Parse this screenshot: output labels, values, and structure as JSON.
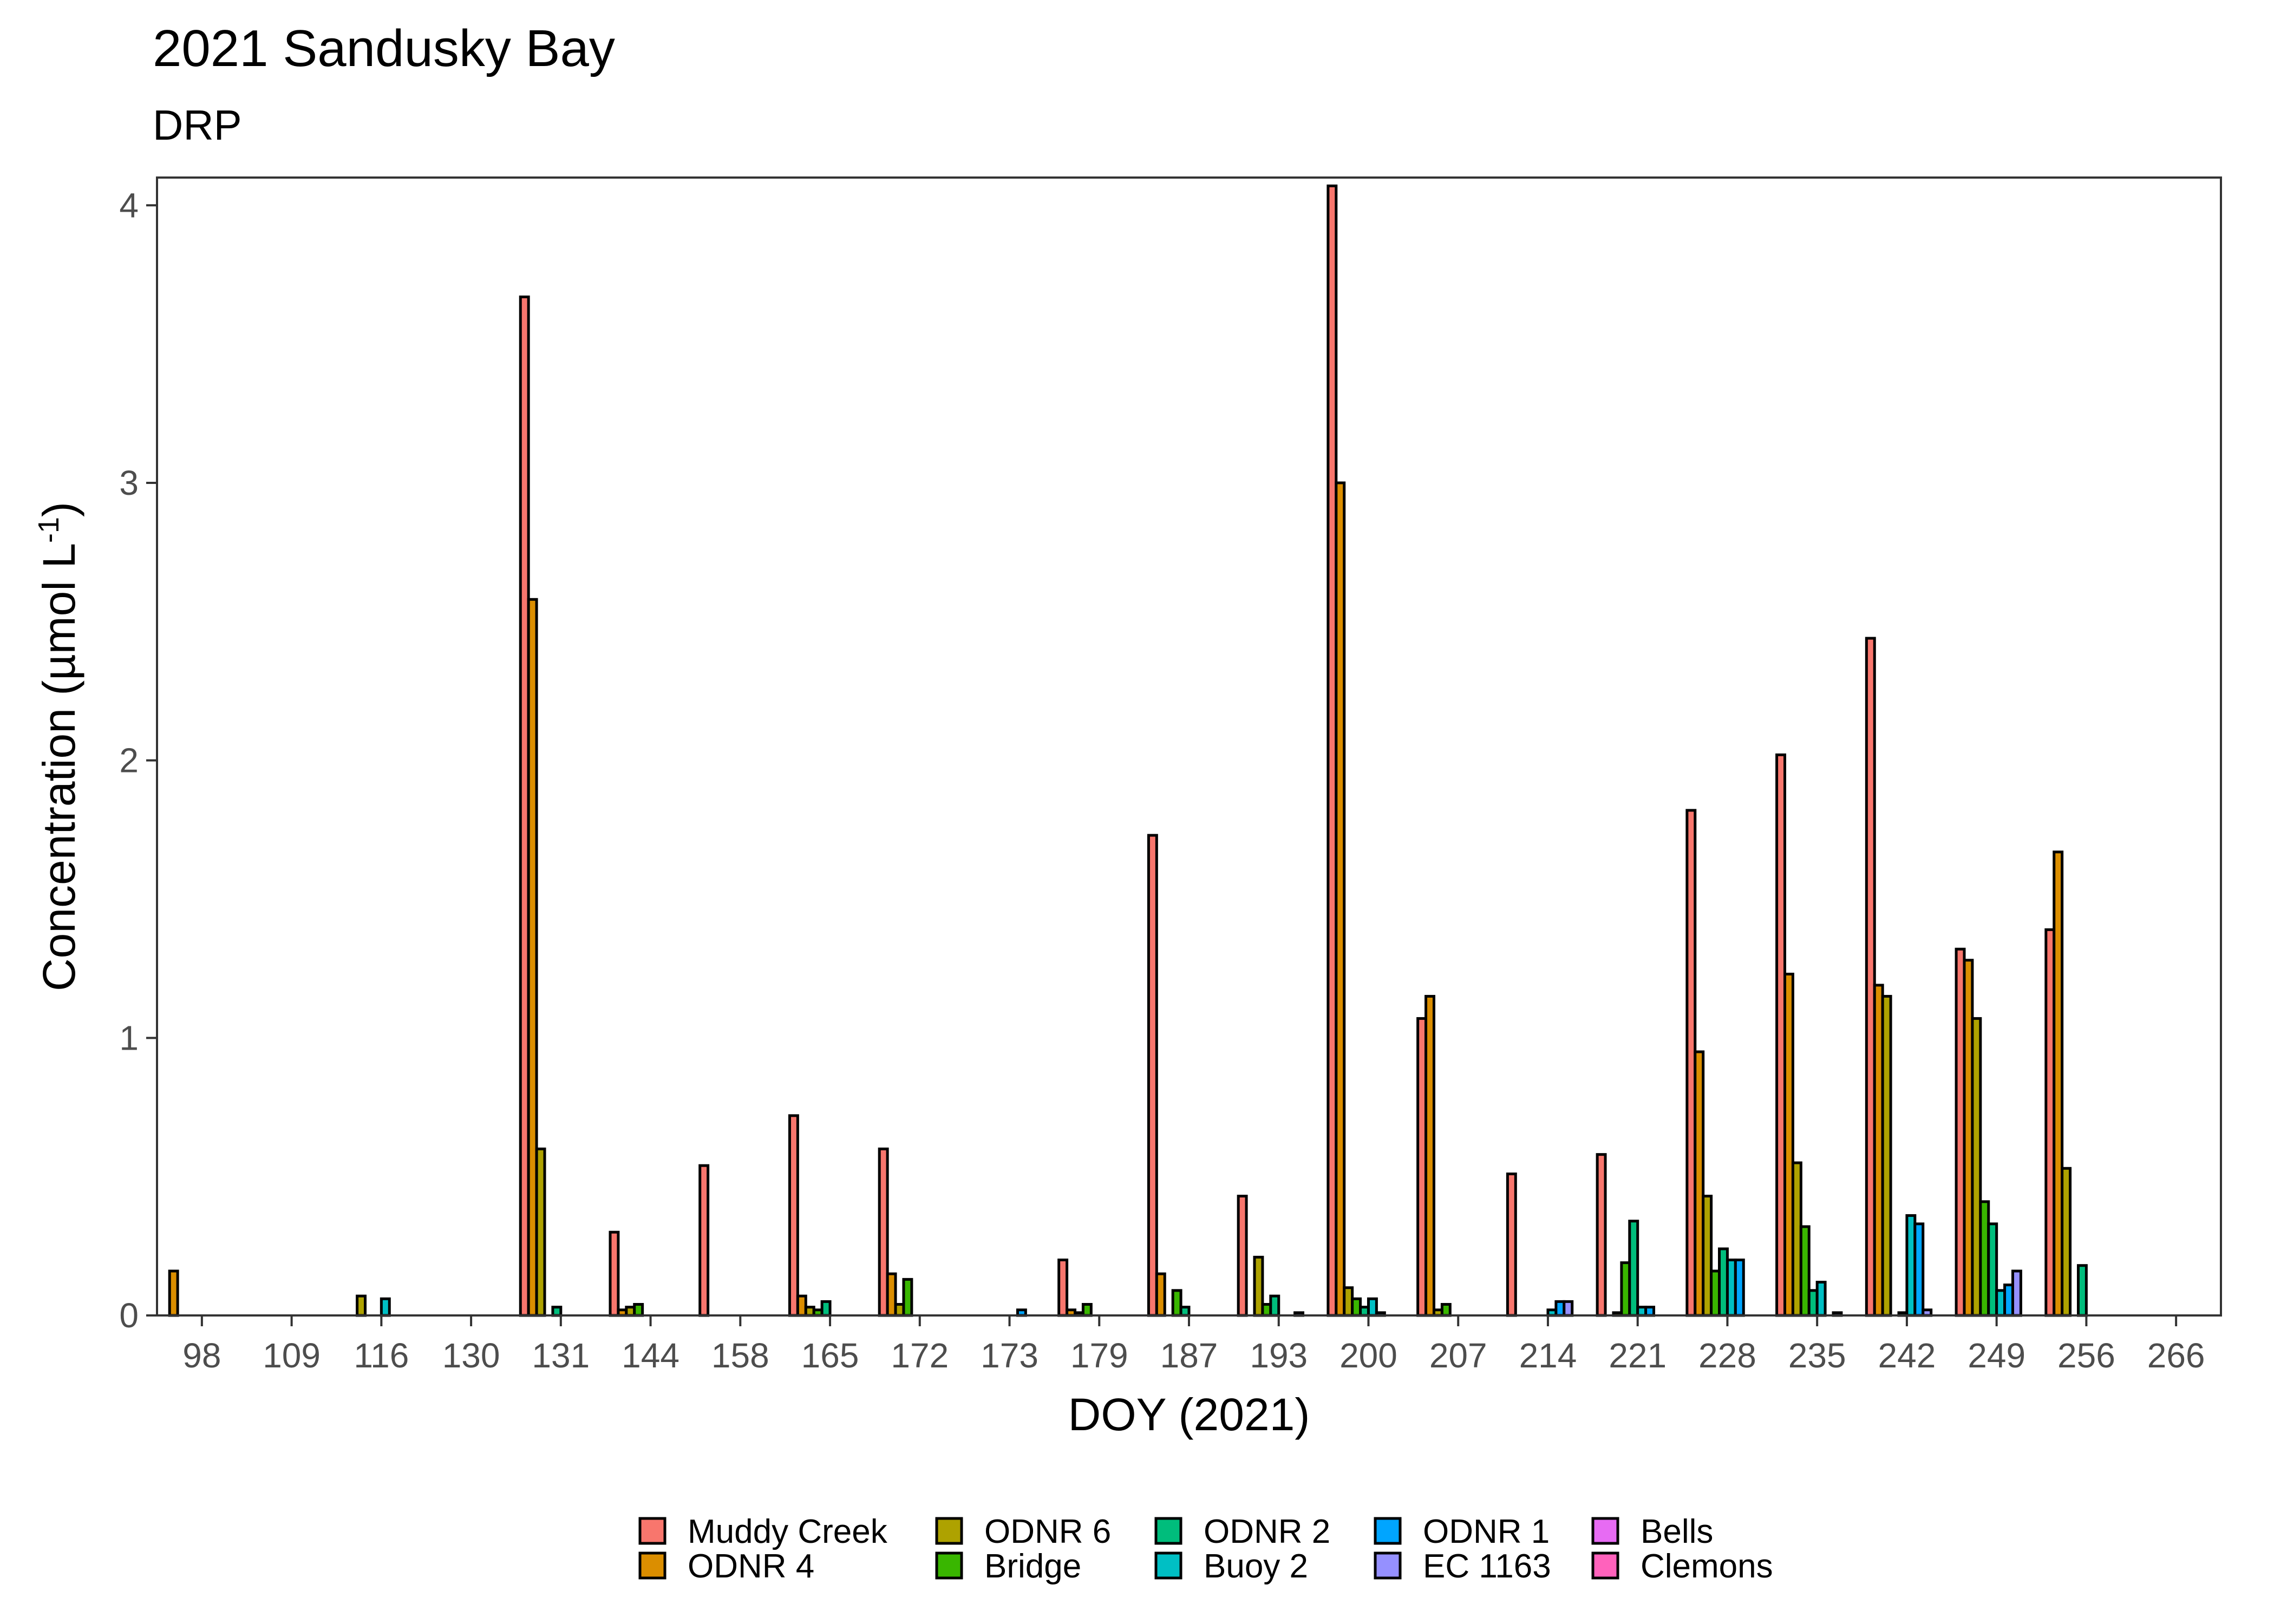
{
  "chart_data": {
    "type": "bar",
    "title": "2021 Sandusky Bay",
    "subtitle": "DRP",
    "xlabel": "DOY (2021)",
    "ylabel_main": "Concentration (µmol L",
    "ylabel_sup": "-1",
    "ylabel_close": ")",
    "ylim": [
      0,
      4.1
    ],
    "yticks": [
      0,
      1,
      2,
      3,
      4
    ],
    "grid": false,
    "legend_position": "bottom",
    "categories": [
      "98",
      "109",
      "116",
      "130",
      "131",
      "144",
      "158",
      "165",
      "172",
      "173",
      "179",
      "187",
      "193",
      "200",
      "207",
      "214",
      "221",
      "228",
      "235",
      "242",
      "249",
      "256",
      "266"
    ],
    "series": [
      {
        "name": "Muddy Creek",
        "color": "#F8766D",
        "values": [
          null,
          null,
          null,
          null,
          3.67,
          0.3,
          0.54,
          0.72,
          0.6,
          null,
          0.2,
          1.73,
          0.43,
          4.07,
          1.07,
          0.51,
          0.58,
          1.82,
          2.02,
          2.44,
          1.32,
          1.39,
          null
        ]
      },
      {
        "name": "ODNR 4",
        "color": "#DB8E00",
        "values": [
          0.16,
          null,
          null,
          null,
          2.58,
          0.02,
          null,
          0.07,
          0.15,
          null,
          0.02,
          0.15,
          null,
          3.0,
          1.15,
          null,
          null,
          0.95,
          1.23,
          1.19,
          1.28,
          1.67,
          null
        ]
      },
      {
        "name": "ODNR 6",
        "color": "#AEA200",
        "values": [
          null,
          null,
          0.07,
          null,
          0.6,
          0.03,
          null,
          0.03,
          0.04,
          null,
          0.01,
          null,
          0.21,
          0.1,
          0.02,
          null,
          0.01,
          0.43,
          0.55,
          1.15,
          1.07,
          0.53,
          null
        ]
      },
      {
        "name": "Bridge",
        "color": "#39B600",
        "values": [
          null,
          null,
          null,
          null,
          null,
          0.04,
          null,
          0.02,
          0.13,
          null,
          0.04,
          0.09,
          0.04,
          0.06,
          0.04,
          null,
          0.19,
          0.16,
          0.32,
          null,
          0.41,
          null,
          null
        ]
      },
      {
        "name": "ODNR 2",
        "color": "#00BD7C",
        "values": [
          null,
          null,
          null,
          null,
          0.03,
          null,
          null,
          0.05,
          null,
          null,
          null,
          0.03,
          0.07,
          0.03,
          null,
          null,
          0.34,
          0.24,
          0.09,
          0.01,
          0.33,
          0.18,
          null
        ]
      },
      {
        "name": "Buoy 2",
        "color": "#00BFC4",
        "values": [
          null,
          null,
          0.06,
          null,
          null,
          null,
          null,
          null,
          null,
          null,
          null,
          null,
          null,
          0.06,
          null,
          0.02,
          0.03,
          0.2,
          0.12,
          0.36,
          0.09,
          null,
          null
        ]
      },
      {
        "name": "ODNR 1",
        "color": "#00A5FF",
        "values": [
          null,
          null,
          null,
          null,
          null,
          null,
          null,
          null,
          null,
          0.02,
          null,
          null,
          null,
          0.01,
          null,
          0.05,
          0.03,
          0.2,
          null,
          0.33,
          0.11,
          null,
          null
        ]
      },
      {
        "name": "EC 1163",
        "color": "#9590FF",
        "values": [
          null,
          null,
          null,
          null,
          null,
          null,
          null,
          null,
          null,
          null,
          null,
          null,
          0.01,
          null,
          null,
          0.05,
          null,
          null,
          0.01,
          0.02,
          0.16,
          null,
          null
        ]
      },
      {
        "name": "Bells",
        "color": "#E76BF3",
        "values": [
          null,
          null,
          null,
          null,
          null,
          null,
          null,
          null,
          null,
          null,
          null,
          null,
          null,
          null,
          null,
          null,
          null,
          null,
          null,
          null,
          null,
          null,
          null
        ]
      },
      {
        "name": "Clemons",
        "color": "#FF62BC",
        "values": [
          null,
          null,
          null,
          null,
          null,
          null,
          null,
          null,
          null,
          null,
          null,
          null,
          null,
          null,
          null,
          null,
          null,
          null,
          null,
          null,
          null,
          null,
          null
        ]
      }
    ]
  }
}
